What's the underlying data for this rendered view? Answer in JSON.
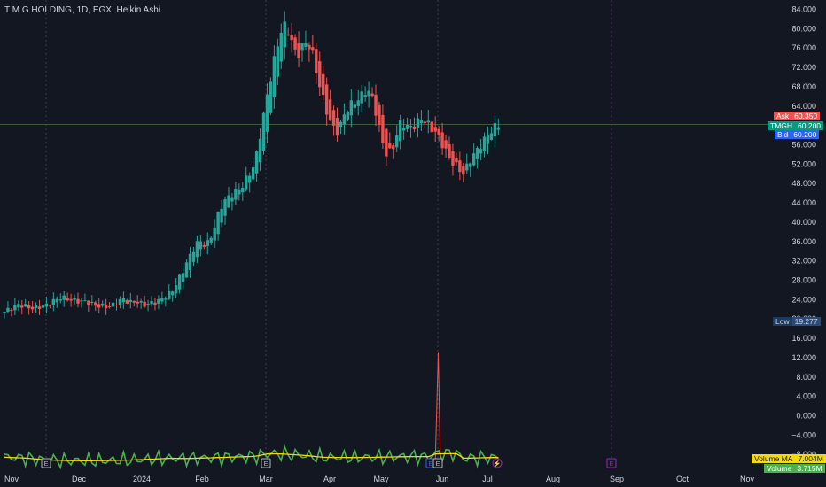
{
  "header": {
    "title": "T M G HOLDING, 1D, EGX, Heikin Ashi"
  },
  "price_tags": {
    "ask": {
      "label": "Ask",
      "value": "60.350"
    },
    "last": {
      "label": "TMGH",
      "value": "60.200"
    },
    "bid": {
      "label": "Bid",
      "value": "60.200"
    },
    "low": {
      "label": "Low",
      "value": "19.277"
    }
  },
  "volume_tags": {
    "ma": {
      "label": "Volume MA",
      "value": "7.004M"
    },
    "vol": {
      "label": "Volume",
      "value": "3.715M"
    }
  },
  "colors": {
    "up": "#26a69a",
    "down": "#ef5350",
    "volume": "#4caf50",
    "volume_ma": "#f5d90a",
    "volume_down": "#ef5350",
    "background": "#131722",
    "grid": "#2a2e39"
  },
  "event_markers": [
    {
      "label": "E",
      "date": "Dec 2023",
      "color": "#b2b5be"
    },
    {
      "label": "E",
      "date": "Mar 2024",
      "color": "#b2b5be"
    },
    {
      "label": "E",
      "date": "Jun 2024",
      "color": "#2962ff"
    },
    {
      "label": "E",
      "date": "Jun 2024",
      "color": "#b2b5be"
    },
    {
      "label": "⚡",
      "date": "Jul 2024",
      "color": "#9c27b0"
    },
    {
      "label": "E",
      "date": "Sep 2024",
      "color": "#9c27b0"
    }
  ],
  "chart_data": {
    "type": "candlestick",
    "title": "T M G HOLDING, 1D, EGX, Heikin Ashi",
    "x_axis": {
      "tick_labels": [
        "Nov",
        "Dec",
        "2024",
        "Feb",
        "Mar",
        "Apr",
        "May",
        "Jun",
        "Jul",
        "Aug",
        "Sep",
        "Oct",
        "Nov"
      ]
    },
    "y_axis": {
      "tick_labels": [
        "84.000",
        "80.000",
        "76.000",
        "72.000",
        "68.000",
        "64.000",
        "60.000",
        "56.000",
        "52.000",
        "48.000",
        "44.000",
        "40.000",
        "36.000",
        "32.000",
        "28.000",
        "24.000",
        "20.000",
        "16.000",
        "12.000",
        "8.000",
        "4.000",
        "0.000",
        "−4.000",
        "−8.000"
      ],
      "range": [
        -9,
        86
      ]
    },
    "price_path": [
      [
        0,
        21.5
      ],
      [
        2,
        23
      ],
      [
        4,
        22.2
      ],
      [
        6,
        22.8
      ],
      [
        8,
        24.5
      ],
      [
        10,
        23.8
      ],
      [
        12,
        23.5
      ],
      [
        13,
        22.8
      ],
      [
        15,
        22.5
      ],
      [
        16,
        23.2
      ],
      [
        17,
        24.2
      ],
      [
        18,
        23.4
      ],
      [
        19,
        23.6
      ],
      [
        20,
        22.9
      ],
      [
        22,
        23.6
      ],
      [
        24,
        25.5
      ],
      [
        25,
        28
      ],
      [
        26,
        31
      ],
      [
        27,
        34
      ],
      [
        28,
        36.3
      ],
      [
        29,
        35
      ],
      [
        30,
        38
      ],
      [
        31,
        43
      ],
      [
        32,
        45
      ],
      [
        34,
        47
      ],
      [
        36,
        52
      ],
      [
        37,
        60
      ],
      [
        38,
        68
      ],
      [
        39,
        75
      ],
      [
        40,
        81
      ],
      [
        41,
        79
      ],
      [
        42,
        74
      ],
      [
        43,
        77
      ],
      [
        44,
        76.5
      ],
      [
        45,
        70
      ],
      [
        46,
        64.5
      ],
      [
        47,
        60
      ],
      [
        48,
        58.5
      ],
      [
        49,
        63
      ],
      [
        50,
        64.5
      ],
      [
        51,
        65.5
      ],
      [
        52,
        67.5
      ],
      [
        53,
        65.5
      ],
      [
        54,
        58.5
      ],
      [
        55,
        53.5
      ],
      [
        56,
        56
      ],
      [
        57,
        61
      ],
      [
        58,
        59.5
      ],
      [
        59,
        60
      ],
      [
        60,
        61.5
      ],
      [
        61,
        60
      ],
      [
        62,
        58.5
      ],
      [
        63,
        56
      ],
      [
        64,
        53
      ],
      [
        65,
        51.5
      ],
      [
        66,
        50
      ],
      [
        67,
        53
      ],
      [
        68,
        55
      ],
      [
        69,
        57
      ],
      [
        70,
        59
      ],
      [
        71,
        60.2
      ]
    ],
    "volume": {
      "ma_series_name": "Volume MA",
      "ma": [
        [
          0,
          7.2
        ],
        [
          3,
          6.7
        ],
        [
          6,
          5.6
        ],
        [
          9,
          5.2
        ],
        [
          12,
          5.1
        ],
        [
          15,
          5.2
        ],
        [
          18,
          5.5
        ],
        [
          21,
          6
        ],
        [
          24,
          6.6
        ],
        [
          26,
          6.4
        ],
        [
          30,
          6.9
        ],
        [
          33,
          7.3
        ],
        [
          36,
          7.7
        ],
        [
          38,
          9.3
        ],
        [
          40,
          9.1
        ],
        [
          43,
          8.3
        ],
        [
          46,
          7.1
        ],
        [
          50,
          7
        ],
        [
          53,
          7.1
        ],
        [
          56,
          7.4
        ],
        [
          59,
          7.6
        ],
        [
          61,
          7.5
        ],
        [
          62,
          9.2
        ],
        [
          65,
          9.3
        ],
        [
          66,
          6.6
        ],
        [
          70,
          7
        ]
      ],
      "spike": {
        "date": "Jun 2024",
        "value": 13
      }
    }
  }
}
